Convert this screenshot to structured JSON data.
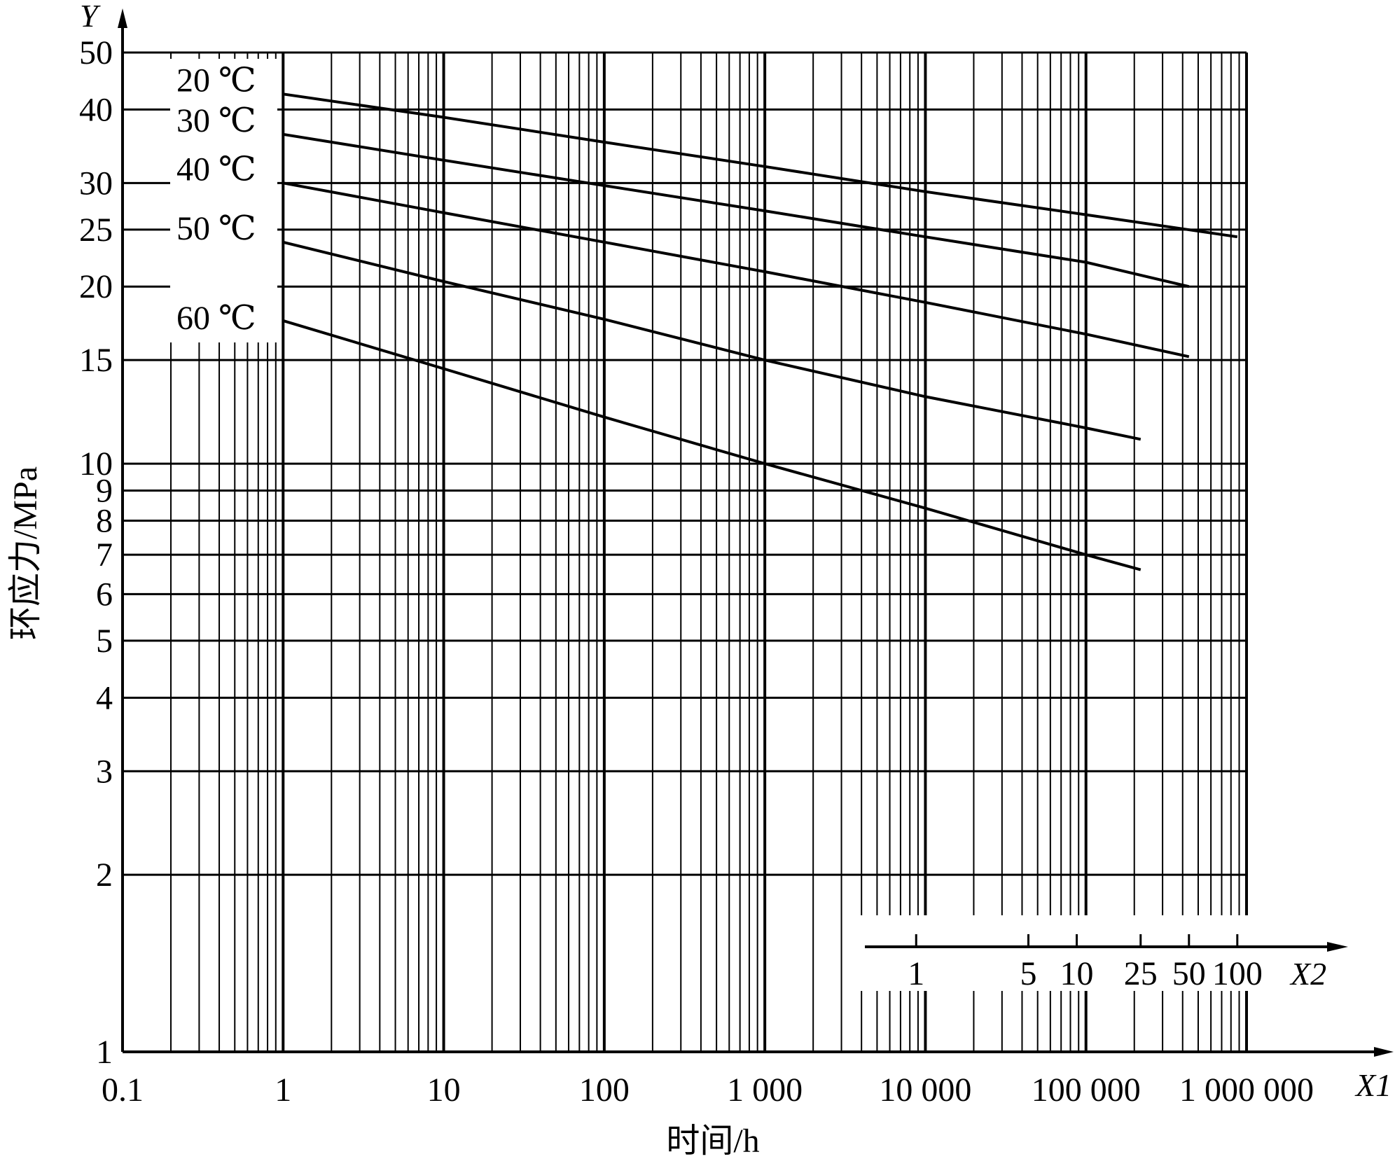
{
  "chart_data": {
    "type": "line",
    "title": "",
    "xlabel": "时间/h",
    "ylabel": "环应力/MPa",
    "x_axis_name": "X1",
    "y_axis_name": "Y",
    "x2_axis_name": "X2",
    "x_scale": "log",
    "y_scale": "log",
    "xlim": [
      0.1,
      1000000
    ],
    "ylim": [
      1,
      50
    ],
    "grid": true,
    "x_ticks": [
      {
        "value": 0.1,
        "label": "0.1"
      },
      {
        "value": 1,
        "label": "1"
      },
      {
        "value": 10,
        "label": "10"
      },
      {
        "value": 100,
        "label": "100"
      },
      {
        "value": 1000,
        "label": "1 000"
      },
      {
        "value": 10000,
        "label": "10 000"
      },
      {
        "value": 100000,
        "label": "100 000"
      },
      {
        "value": 1000000,
        "label": "1 000 000"
      }
    ],
    "y_ticks": [
      {
        "value": 1,
        "label": "1"
      },
      {
        "value": 2,
        "label": "2"
      },
      {
        "value": 3,
        "label": "3"
      },
      {
        "value": 4,
        "label": "4"
      },
      {
        "value": 5,
        "label": "5"
      },
      {
        "value": 6,
        "label": "6"
      },
      {
        "value": 7,
        "label": "7"
      },
      {
        "value": 8,
        "label": "8"
      },
      {
        "value": 9,
        "label": "9"
      },
      {
        "value": 10,
        "label": "10"
      },
      {
        "value": 15,
        "label": "15"
      },
      {
        "value": 20,
        "label": "20"
      },
      {
        "value": 25,
        "label": "25"
      },
      {
        "value": 30,
        "label": "30"
      },
      {
        "value": 40,
        "label": "40"
      },
      {
        "value": 50,
        "label": "50"
      }
    ],
    "x2_ticks": [
      {
        "value": 1,
        "label": "1"
      },
      {
        "value": 5,
        "label": "5"
      },
      {
        "value": 10,
        "label": "10"
      },
      {
        "value": 25,
        "label": "25"
      },
      {
        "value": 50,
        "label": "50"
      },
      {
        "value": 100,
        "label": "100"
      }
    ],
    "series": [
      {
        "name": "20 ℃",
        "x": [
          1,
          10,
          100,
          1000,
          10000,
          100000,
          876000
        ],
        "y": [
          42.5,
          38.8,
          35.2,
          32.0,
          29.0,
          26.5,
          24.3
        ]
      },
      {
        "name": "30 ℃",
        "x": [
          1,
          10,
          100,
          1000,
          10000,
          100000,
          438000
        ],
        "y": [
          36.3,
          32.8,
          29.7,
          26.9,
          24.3,
          22.0,
          20.0
        ]
      },
      {
        "name": "40 ℃",
        "x": [
          1,
          10,
          100,
          1000,
          10000,
          100000,
          438000
        ],
        "y": [
          30.0,
          26.7,
          23.8,
          21.2,
          18.8,
          16.6,
          15.2
        ]
      },
      {
        "name": "50 ℃",
        "x": [
          1,
          10,
          100,
          1000,
          10000,
          100000,
          219000
        ],
        "y": [
          23.8,
          20.4,
          17.6,
          15.0,
          13.0,
          11.5,
          11.0
        ]
      },
      {
        "name": "60 ℃",
        "x": [
          1,
          10,
          100,
          1000,
          10000,
          100000,
          219000
        ],
        "y": [
          17.5,
          14.5,
          12.0,
          10.0,
          8.4,
          7.0,
          6.6
        ]
      }
    ]
  }
}
